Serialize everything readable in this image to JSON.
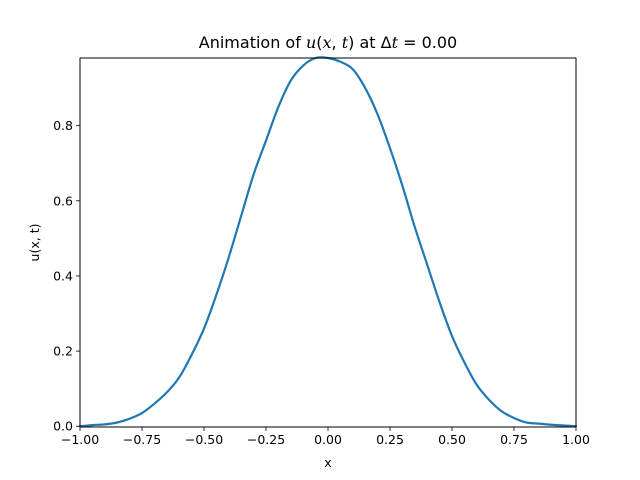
{
  "chart_data": {
    "type": "line",
    "title": {
      "prefix": "Animation of ",
      "var_u": "u",
      "paren_open": "(",
      "var_x": "x",
      "comma": ", ",
      "var_t": "t",
      "paren_close": ")",
      "mid": " at Δ",
      "var_t2": "t",
      "suffix": " = 0.00"
    },
    "xlabel": "x",
    "ylabel": "u(x, t)",
    "xlim": [
      -1.0,
      1.0
    ],
    "ylim": [
      -0.002,
      0.98
    ],
    "xticks": [
      -1.0,
      -0.75,
      -0.5,
      -0.25,
      0.0,
      0.25,
      0.5,
      0.75,
      1.0
    ],
    "xtick_labels": [
      "−1.00",
      "−0.75",
      "−0.50",
      "−0.25",
      "0.00",
      "0.25",
      "0.50",
      "0.75",
      "1.00"
    ],
    "yticks": [
      0.0,
      0.2,
      0.4,
      0.6,
      0.8
    ],
    "ytick_labels": [
      "0.0",
      "0.2",
      "0.4",
      "0.6",
      "0.8"
    ],
    "grid": false,
    "series": [
      {
        "color": "#1f77b4",
        "x": [
          -1.0,
          -0.95,
          -0.9,
          -0.85,
          -0.8,
          -0.75,
          -0.7,
          -0.65,
          -0.6,
          -0.55,
          -0.5,
          -0.45,
          -0.4,
          -0.35,
          -0.3,
          -0.25,
          -0.2,
          -0.15,
          -0.1,
          -0.05,
          0.0,
          0.05,
          0.1,
          0.15,
          0.2,
          0.25,
          0.3,
          0.35,
          0.4,
          0.45,
          0.5,
          0.55,
          0.6,
          0.65,
          0.7,
          0.75,
          0.8,
          0.85,
          0.9,
          0.95,
          1.0
        ],
        "y": [
          0.0,
          0.003,
          0.005,
          0.01,
          0.02,
          0.035,
          0.06,
          0.09,
          0.13,
          0.19,
          0.26,
          0.35,
          0.45,
          0.56,
          0.67,
          0.76,
          0.85,
          0.92,
          0.96,
          0.98,
          0.98,
          0.97,
          0.95,
          0.9,
          0.83,
          0.74,
          0.64,
          0.53,
          0.43,
          0.33,
          0.24,
          0.17,
          0.11,
          0.07,
          0.04,
          0.022,
          0.01,
          0.007,
          0.004,
          0.002,
          0.0
        ]
      }
    ]
  }
}
